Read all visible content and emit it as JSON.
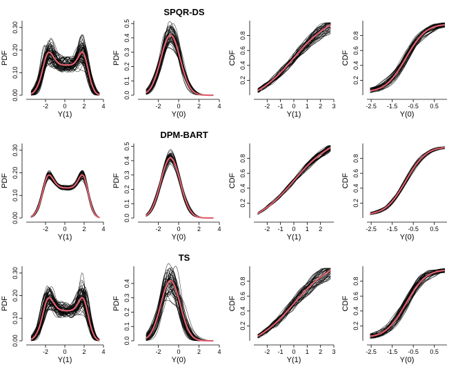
{
  "figure": {
    "row_titles": [
      "SPQR-DS",
      "DPM-BART",
      "TS"
    ],
    "truth_color": "#e0606e",
    "draw_color": "#000000"
  },
  "chart_data": [
    {
      "type": "line",
      "row": 0,
      "col": 0,
      "kind": "pdf",
      "dist": "y1",
      "title": "SPQR-DS",
      "xlabel": "Y(1)",
      "ylabel": "PDF",
      "xlim": [
        -4,
        4
      ],
      "ylim": [
        0,
        0.33
      ],
      "xticks": [
        "-2",
        "0",
        "2",
        "4"
      ],
      "yticks": [
        "0.00",
        "0.10",
        "0.20",
        "0.30"
      ],
      "n_draws": 60,
      "noise": "high",
      "series": [
        {
          "name": "posterior draws"
        },
        {
          "name": "true density"
        }
      ]
    },
    {
      "type": "line",
      "row": 0,
      "col": 1,
      "kind": "pdf",
      "dist": "y0",
      "xlabel": "Y(0)",
      "ylabel": "PDF",
      "xlim": [
        -4,
        4
      ],
      "ylim": [
        0,
        0.52
      ],
      "xticks": [
        "-2",
        "0",
        "2",
        "4"
      ],
      "yticks": [
        "0.0",
        "0.1",
        "0.2",
        "0.3",
        "0.4",
        "0.5"
      ],
      "n_draws": 45,
      "noise": "mid",
      "series": [
        {
          "name": "posterior draws"
        },
        {
          "name": "true density"
        }
      ]
    },
    {
      "type": "line",
      "row": 0,
      "col": 2,
      "kind": "cdf",
      "dist": "y1",
      "xlabel": "Y(1)",
      "ylabel": "CDF",
      "xlim": [
        -3,
        3
      ],
      "ylim": [
        0,
        1
      ],
      "xticks": [
        "-2",
        "-1",
        "0",
        "1",
        "2",
        "3"
      ],
      "yticks": [
        "0.2",
        "0.4",
        "0.6",
        "0.8"
      ],
      "n_draws": 40,
      "noise": "mid",
      "series": [
        {
          "name": "posterior draws"
        },
        {
          "name": "true CDF"
        }
      ]
    },
    {
      "type": "line",
      "row": 0,
      "col": 3,
      "kind": "cdf",
      "dist": "y0",
      "xlabel": "Y(0)",
      "ylabel": "CDF",
      "xlim": [
        -2.7,
        1.1
      ],
      "ylim": [
        0,
        1
      ],
      "xticks": [
        "-2.5",
        "-1.5",
        "-0.5",
        "0.5"
      ],
      "yticks": [
        "0.2",
        "0.4",
        "0.6",
        "0.8"
      ],
      "n_draws": 40,
      "noise": "mid",
      "series": [
        {
          "name": "posterior draws"
        },
        {
          "name": "true CDF"
        }
      ]
    },
    {
      "type": "line",
      "row": 1,
      "col": 0,
      "kind": "pdf",
      "dist": "y1",
      "title": "DPM-BART",
      "xlabel": "Y(1)",
      "ylabel": "PDF",
      "xlim": [
        -4,
        4
      ],
      "ylim": [
        0,
        0.33
      ],
      "xticks": [
        "-2",
        "0",
        "2",
        "4"
      ],
      "yticks": [
        "0.00",
        "0.10",
        "0.20",
        "0.30"
      ],
      "n_draws": 60,
      "noise": "low",
      "series": [
        {
          "name": "posterior draws"
        },
        {
          "name": "true density"
        }
      ]
    },
    {
      "type": "line",
      "row": 1,
      "col": 1,
      "kind": "pdf",
      "dist": "y0",
      "xlabel": "Y(0)",
      "ylabel": "PDF",
      "xlim": [
        -4,
        4
      ],
      "ylim": [
        0,
        0.52
      ],
      "xticks": [
        "-2",
        "0",
        "2",
        "4"
      ],
      "yticks": [
        "0.0",
        "0.1",
        "0.2",
        "0.3",
        "0.4",
        "0.5"
      ],
      "n_draws": 45,
      "noise": "low",
      "series": [
        {
          "name": "posterior draws"
        },
        {
          "name": "true density"
        }
      ]
    },
    {
      "type": "line",
      "row": 1,
      "col": 2,
      "kind": "cdf",
      "dist": "y1",
      "xlabel": "Y(1)",
      "ylabel": "CDF",
      "xlim": [
        -3,
        3
      ],
      "ylim": [
        0,
        1
      ],
      "xticks": [
        "-2",
        "-1",
        "0",
        "1",
        "2"
      ],
      "yticks": [
        "0.2",
        "0.4",
        "0.6",
        "0.8"
      ],
      "n_draws": 40,
      "noise": "low",
      "series": [
        {
          "name": "posterior draws"
        },
        {
          "name": "true CDF"
        }
      ]
    },
    {
      "type": "line",
      "row": 1,
      "col": 3,
      "kind": "cdf",
      "dist": "y0",
      "xlabel": "Y(0)",
      "ylabel": "CDF",
      "xlim": [
        -2.7,
        1.1
      ],
      "ylim": [
        0,
        1
      ],
      "xticks": [
        "-2.5",
        "-1.5",
        "-0.5",
        "0.5"
      ],
      "yticks": [
        "0.2",
        "0.4",
        "0.6",
        "0.8"
      ],
      "n_draws": 40,
      "noise": "low",
      "series": [
        {
          "name": "posterior draws"
        },
        {
          "name": "true CDF"
        }
      ]
    },
    {
      "type": "line",
      "row": 2,
      "col": 0,
      "kind": "pdf",
      "dist": "y1",
      "title": "TS",
      "xlabel": "Y(1)",
      "ylabel": "PDF",
      "xlim": [
        -4,
        4
      ],
      "ylim": [
        0,
        0.33
      ],
      "xticks": [
        "-2",
        "0",
        "2",
        "4"
      ],
      "yticks": [
        "0.00",
        "0.10",
        "0.20",
        "0.30"
      ],
      "n_draws": 60,
      "noise": "high",
      "series": [
        {
          "name": "posterior draws"
        },
        {
          "name": "true density"
        }
      ]
    },
    {
      "type": "line",
      "row": 2,
      "col": 1,
      "kind": "pdf",
      "dist": "y0",
      "xlabel": "Y(0)",
      "ylabel": "PDF",
      "xlim": [
        -4,
        4
      ],
      "ylim": [
        0,
        0.52
      ],
      "xticks": [
        "-2",
        "0",
        "2",
        "4"
      ],
      "yticks": [
        "0.0",
        "0.1",
        "0.2",
        "0.3",
        "0.4"
      ],
      "n_draws": 45,
      "noise": "high",
      "series": [
        {
          "name": "posterior draws"
        },
        {
          "name": "true density"
        }
      ]
    },
    {
      "type": "line",
      "row": 2,
      "col": 2,
      "kind": "cdf",
      "dist": "y1",
      "xlabel": "Y(1)",
      "ylabel": "CDF",
      "xlim": [
        -3,
        3
      ],
      "ylim": [
        0,
        1
      ],
      "xticks": [
        "-2",
        "-1",
        "0",
        "1",
        "2",
        "3"
      ],
      "yticks": [
        "0.2",
        "0.4",
        "0.6",
        "0.8"
      ],
      "n_draws": 40,
      "noise": "mid",
      "series": [
        {
          "name": "posterior draws"
        },
        {
          "name": "true CDF"
        }
      ]
    },
    {
      "type": "line",
      "row": 2,
      "col": 3,
      "kind": "cdf",
      "dist": "y0",
      "xlabel": "Y(0)",
      "ylabel": "CDF",
      "xlim": [
        -2.7,
        1.1
      ],
      "ylim": [
        0,
        1
      ],
      "xticks": [
        "-2.5",
        "-1.5",
        "-0.5",
        "0.5"
      ],
      "yticks": [
        "0.2",
        "0.4",
        "0.6",
        "0.8"
      ],
      "n_draws": 40,
      "noise": "mid",
      "series": [
        {
          "name": "posterior draws"
        },
        {
          "name": "true CDF"
        }
      ]
    }
  ]
}
